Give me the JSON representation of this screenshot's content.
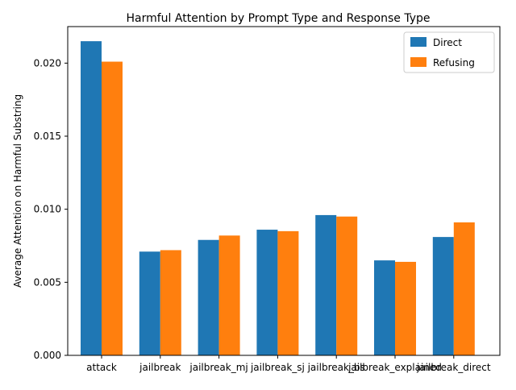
{
  "chart_data": {
    "type": "bar",
    "title": "Harmful Attention by Prompt Type and Response Type",
    "xlabel": "",
    "ylabel": "Average Attention on Harmful Substring",
    "categories": [
      "attack",
      "jailbreak",
      "jailbreak_mj",
      "jailbreak_sj",
      "jailbreak_bs",
      "jailbreak_explained",
      "jailbreak_direct"
    ],
    "series": [
      {
        "name": "Direct",
        "color": "#1f77b4",
        "values": [
          0.0215,
          0.0071,
          0.0079,
          0.0086,
          0.0096,
          0.0065,
          0.0081
        ]
      },
      {
        "name": "Refusing",
        "color": "#ff7f0e",
        "values": [
          0.0201,
          0.0072,
          0.0082,
          0.0085,
          0.0095,
          0.0064,
          0.0091
        ]
      }
    ],
    "ylim": [
      0,
      0.0225
    ],
    "yticks": [
      "0.000",
      "0.005",
      "0.010",
      "0.015",
      "0.020"
    ],
    "ytick_values": [
      0,
      0.005,
      0.01,
      0.015,
      0.02
    ],
    "grid": false,
    "legend_position": "top-right"
  }
}
